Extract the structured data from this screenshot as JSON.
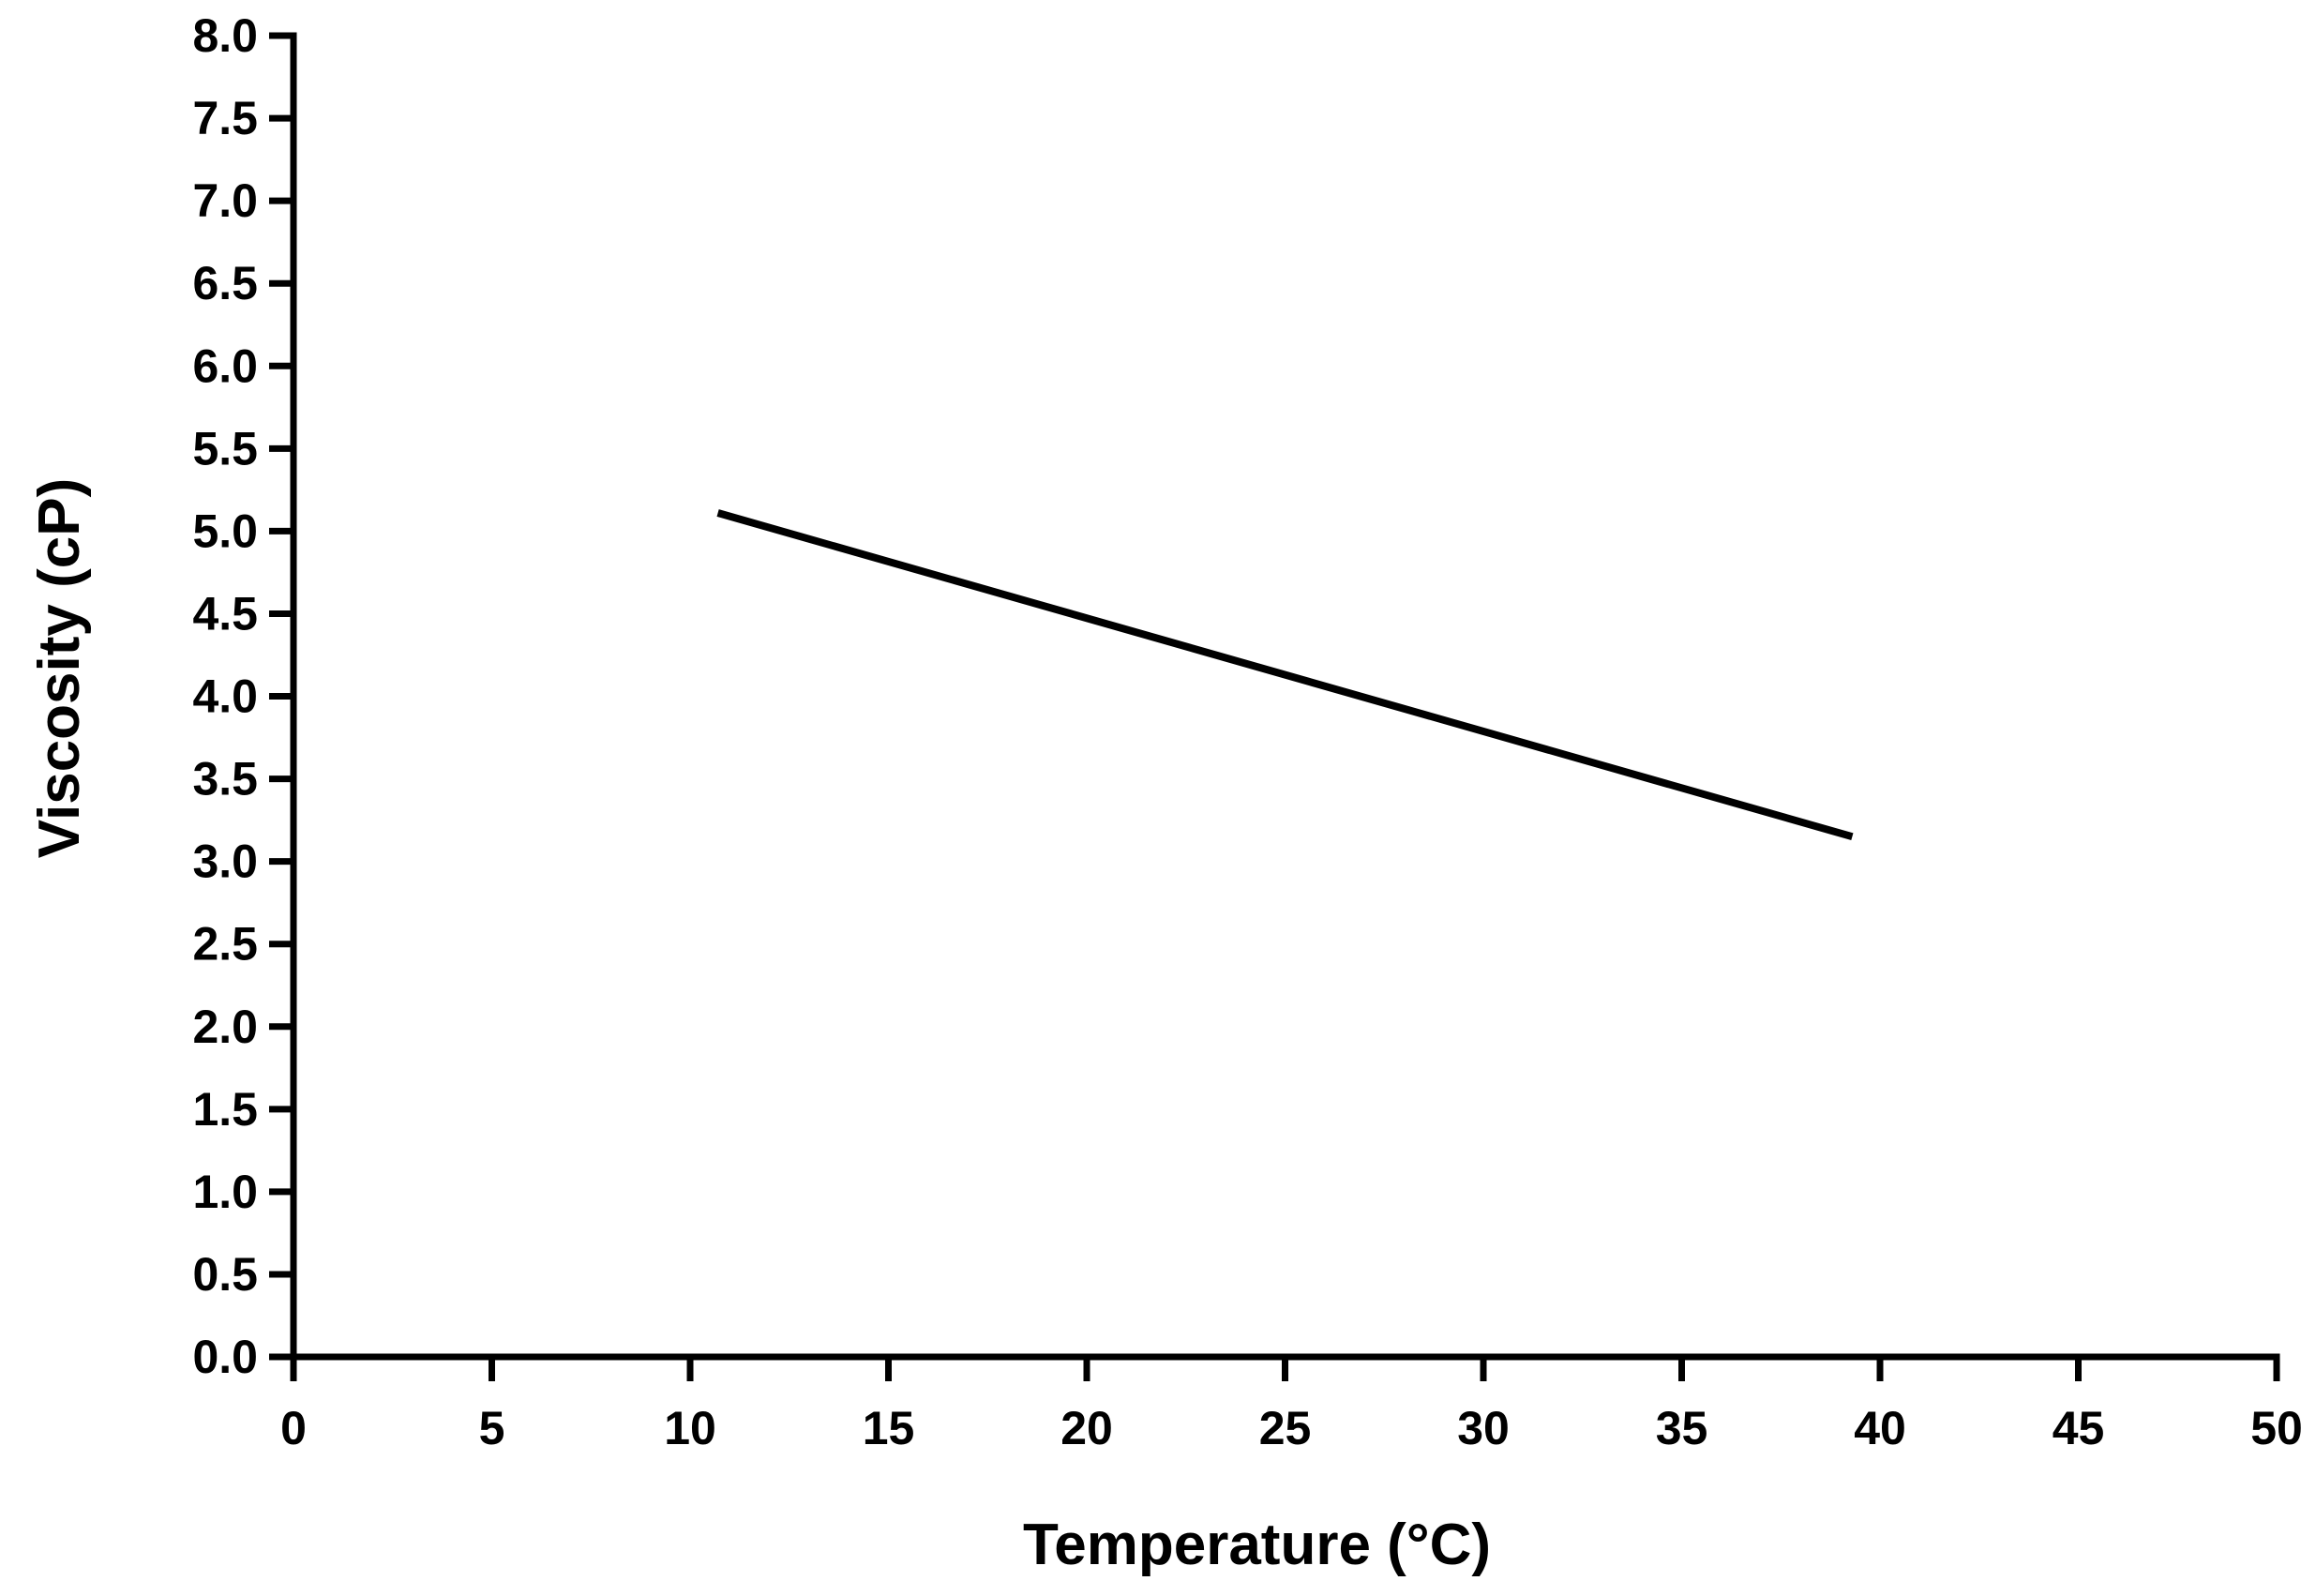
{
  "chart_data": {
    "type": "line",
    "title": "",
    "xlabel": "Temperature (°C)",
    "ylabel": "Viscosity (cP)",
    "xlim": [
      0,
      50
    ],
    "ylim": [
      0,
      8
    ],
    "x_ticks": [
      "0",
      "5",
      "10",
      "15",
      "20",
      "25",
      "30",
      "35",
      "40",
      "45",
      "50"
    ],
    "y_ticks": [
      "0.0",
      "0.5",
      "1.0",
      "1.5",
      "2.0",
      "2.5",
      "3.0",
      "3.5",
      "4.0",
      "4.5",
      "5.0",
      "5.5",
      "6.0",
      "6.5",
      "7.0",
      "7.5",
      "8.0"
    ],
    "grid": false,
    "legend": "none",
    "series": [
      {
        "color": "#000000",
        "x": [
          10.7,
          39.3
        ],
        "y": [
          5.11,
          3.15
        ]
      }
    ]
  }
}
